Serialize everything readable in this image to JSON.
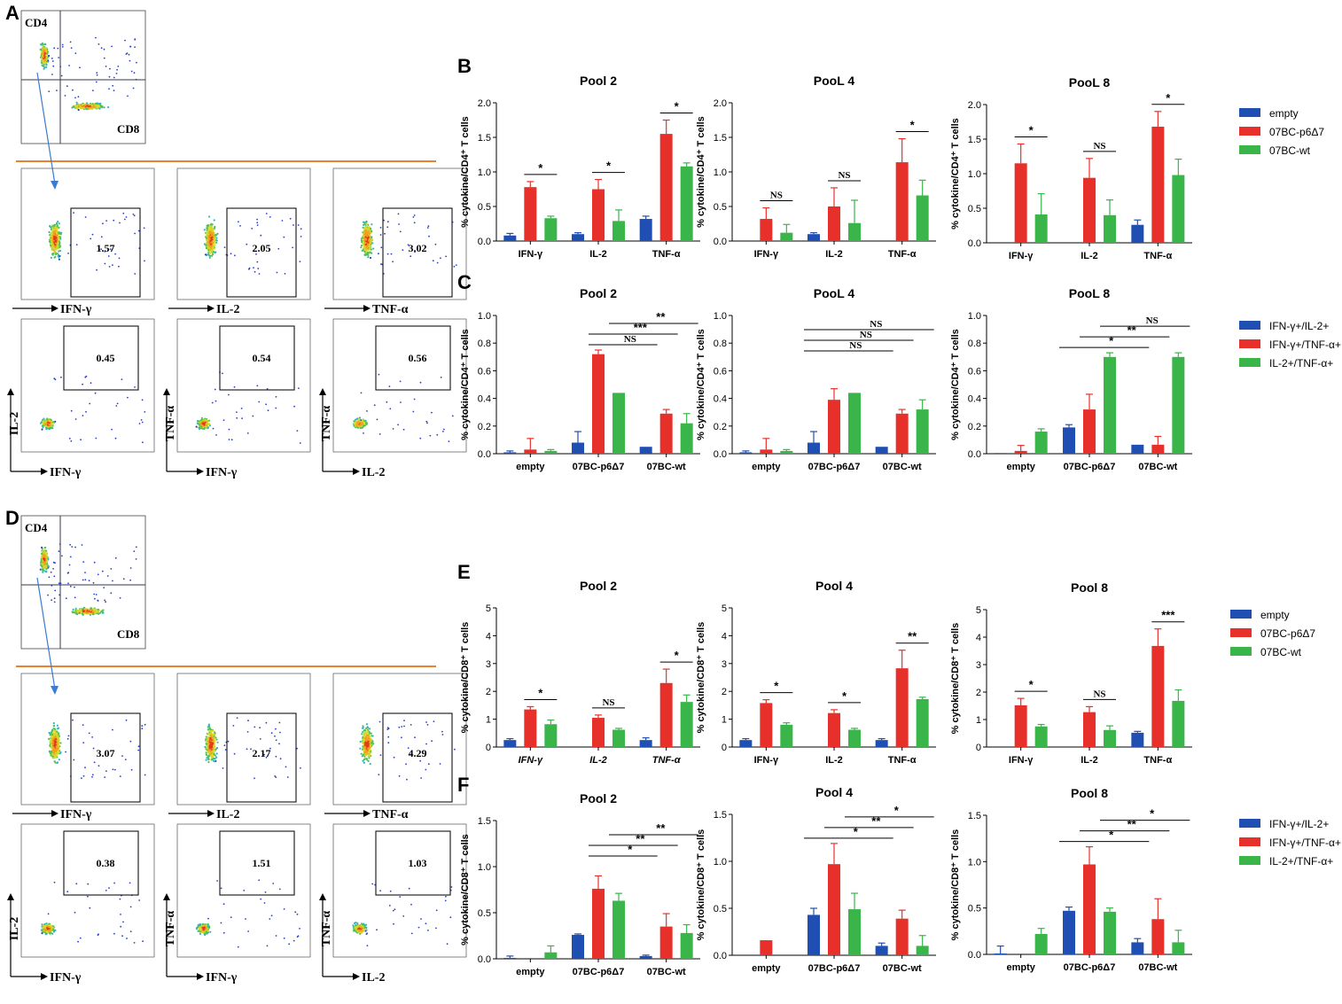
{
  "colors": {
    "blue": "#1f4fb3",
    "red": "#e8302b",
    "green": "#39b54a",
    "orange": "#e8822e",
    "quadline": "#2f3a4a",
    "arrow": "#3b7bd1"
  },
  "panels": {
    "A": {
      "label": "A",
      "quad": {
        "q1": "CD4",
        "q2": "CD8"
      },
      "row1": [
        {
          "marker": "IFN-γ",
          "value": "1.57"
        },
        {
          "marker": "IL-2",
          "value": "2.05"
        },
        {
          "marker": "TNF-α",
          "value": "3.02"
        }
      ],
      "row2": [
        {
          "x": "IFN-γ",
          "y": "IL-2",
          "value": "0.45"
        },
        {
          "x": "IFN-γ",
          "y": "TNF-α",
          "value": "0.54"
        },
        {
          "x": "IL-2",
          "y": "TNF-α",
          "value": "0.56"
        }
      ]
    },
    "D": {
      "label": "D",
      "quad": {
        "q1": "CD4",
        "q2": "CD8"
      },
      "row1": [
        {
          "marker": "IFN-γ",
          "value": "3.07"
        },
        {
          "marker": "IL-2",
          "value": "2.17"
        },
        {
          "marker": "TNF-α",
          "value": "4.29"
        }
      ],
      "row2": [
        {
          "x": "IFN-γ",
          "y": "IL-2",
          "value": "0.38"
        },
        {
          "x": "IFN-γ",
          "y": "TNF-α",
          "value": "1.51"
        },
        {
          "x": "IL-2",
          "y": "TNF-α",
          "value": "1.03"
        }
      ]
    }
  },
  "legends": {
    "cytokine": [
      "empty",
      "07BC-p6Δ7",
      "07BC-wt"
    ],
    "combo": [
      "IFN-γ+/IL-2+",
      "IFN-γ+/TNF-α+",
      "IL-2+/TNF-α+"
    ]
  },
  "chart_data": [
    {
      "panel": "B",
      "type": "bar",
      "title": "Pool 2",
      "ylabel": "% cytokine/CD4⁺ T cells",
      "ylim": [
        0,
        2.0
      ],
      "yticks": [
        "0.0",
        "0.5",
        "1.0",
        "1.5",
        "2.0"
      ],
      "categories": [
        "IFN-γ",
        "IL-2",
        "TNF-α"
      ],
      "series": [
        {
          "name": "empty",
          "values": [
            0.08,
            0.1,
            0.32
          ],
          "err": [
            0.03,
            0.02,
            0.04
          ]
        },
        {
          "name": "07BC-p6Δ7",
          "values": [
            0.78,
            0.75,
            1.55
          ],
          "err": [
            0.08,
            0.14,
            0.2
          ]
        },
        {
          "name": "07BC-wt",
          "values": [
            0.33,
            0.29,
            1.08
          ],
          "err": [
            0.03,
            0.16,
            0.05
          ]
        }
      ],
      "sig": [
        {
          "label": "*",
          "cat": 0
        },
        {
          "label": "*",
          "cat": 1
        },
        {
          "label": "*",
          "cat": 2
        }
      ]
    },
    {
      "panel": "B",
      "type": "bar",
      "title": "PooL 4",
      "ylabel": "% cytokine/CD4⁺ T cells",
      "ylim": [
        0,
        2.0
      ],
      "yticks": [
        "0.0",
        "0.5",
        "1.0",
        "1.5",
        "2.0"
      ],
      "categories": [
        "IFN-γ",
        "IL-2",
        "TNF-α"
      ],
      "series": [
        {
          "name": "empty",
          "values": [
            0,
            0.1,
            0
          ],
          "err": [
            0,
            0.02,
            0
          ]
        },
        {
          "name": "07BC-p6Δ7",
          "values": [
            0.32,
            0.5,
            1.14
          ],
          "err": [
            0.16,
            0.27,
            0.34
          ]
        },
        {
          "name": "07BC-wt",
          "values": [
            0.12,
            0.26,
            0.66
          ],
          "err": [
            0.12,
            0.33,
            0.22
          ]
        }
      ],
      "sig": [
        {
          "label": "NS",
          "cat": 0
        },
        {
          "label": "NS",
          "cat": 1
        },
        {
          "label": "*",
          "cat": 2
        }
      ]
    },
    {
      "panel": "B",
      "type": "bar",
      "title": "PooL 8",
      "ylabel": "% cytokine/CD4⁺ T cells",
      "ylim": [
        0,
        2.0
      ],
      "yticks": [
        "0.0",
        "0.5",
        "1.0",
        "1.5",
        "2.0"
      ],
      "categories": [
        "IFN-γ",
        "IL-2",
        "TNF-α"
      ],
      "series": [
        {
          "name": "empty",
          "values": [
            0,
            0,
            0.26
          ],
          "err": [
            0,
            0,
            0.07
          ]
        },
        {
          "name": "07BC-p6Δ7",
          "values": [
            1.15,
            0.94,
            1.68
          ],
          "err": [
            0.28,
            0.28,
            0.22
          ]
        },
        {
          "name": "07BC-wt",
          "values": [
            0.41,
            0.4,
            0.98
          ],
          "err": [
            0.3,
            0.22,
            0.23
          ]
        }
      ],
      "sig": [
        {
          "label": "*",
          "cat": 0
        },
        {
          "label": "NS",
          "cat": 1
        },
        {
          "label": "*",
          "cat": 2
        }
      ]
    },
    {
      "panel": "C",
      "type": "bar",
      "title": "Pool 2",
      "ylabel": "% cytokine/CD4⁺ T cells",
      "ylim": [
        0,
        1.0
      ],
      "yticks": [
        "0.0",
        "0.2",
        "0.4",
        "0.6",
        "0.8",
        "1.0"
      ],
      "categories": [
        "empty",
        "07BC-p6Δ7",
        "07BC-wt"
      ],
      "series": [
        {
          "name": "IFN-γ+/IL-2+",
          "values": [
            0.01,
            0.08,
            0.05
          ],
          "err": [
            0.01,
            0.08,
            0
          ]
        },
        {
          "name": "IFN-γ+/TNF-α+",
          "values": [
            0.03,
            0.72,
            0.29
          ],
          "err": [
            0.08,
            0.03,
            0.03
          ]
        },
        {
          "name": "IL-2+/TNF-α+",
          "values": [
            0.02,
            0.44,
            0.22
          ],
          "err": [
            0.01,
            0,
            0.07
          ]
        }
      ],
      "brackets": [
        {
          "label": "NS",
          "from": "1:1",
          "to": "2:0"
        },
        {
          "label": "***",
          "from": "1:1",
          "to": "2:1"
        },
        {
          "label": "**",
          "from": "1:2",
          "to": "2:2"
        }
      ]
    },
    {
      "panel": "C",
      "type": "bar",
      "title": "PooL 4",
      "ylabel": "% cytokine/CD4⁺ T cells",
      "ylim": [
        0,
        1.0
      ],
      "yticks": [
        "0.0",
        "0.2",
        "0.4",
        "0.6",
        "0.8",
        "1.0"
      ],
      "categories": [
        "empty",
        "07BC-p6Δ7",
        "07BC-wt"
      ],
      "series": [
        {
          "name": "IFN-γ+/IL-2+",
          "values": [
            0.01,
            0.08,
            0.05
          ],
          "err": [
            0.01,
            0.08,
            0
          ]
        },
        {
          "name": "IFN-γ+/TNF-α+",
          "values": [
            0.03,
            0.39,
            0.29
          ],
          "err": [
            0.08,
            0.08,
            0.03
          ]
        },
        {
          "name": "IL-2+/TNF-α+",
          "values": [
            0.02,
            0.44,
            0.32
          ],
          "err": [
            0.01,
            0,
            0.07
          ]
        }
      ],
      "brackets": [
        {
          "label": "NS",
          "from": "1:0",
          "to": "2:0"
        },
        {
          "label": "NS",
          "from": "1:0",
          "to": "2:1"
        },
        {
          "label": "NS",
          "from": "1:0",
          "to": "2:2"
        }
      ]
    },
    {
      "panel": "C",
      "type": "bar",
      "title": "PooL 8",
      "ylabel": "% cytokine/CD4⁺ T cells",
      "ylim": [
        0,
        1.0
      ],
      "yticks": [
        "0.0",
        "0.2",
        "0.4",
        "0.6",
        "0.8",
        "1.0"
      ],
      "categories": [
        "empty",
        "07BC-p6Δ7",
        "07BC-wt"
      ],
      "series": [
        {
          "name": "IFN-γ+/IL-2+",
          "values": [
            0.005,
            0.19,
            0.065
          ],
          "err": [
            0,
            0.02,
            0
          ]
        },
        {
          "name": "IFN-γ+/TNF-α+",
          "values": [
            0.02,
            0.32,
            0.065
          ],
          "err": [
            0.04,
            0.11,
            0.06
          ]
        },
        {
          "name": "IL-2+/TNF-α+",
          "values": [
            0.16,
            0.7,
            0.7
          ],
          "err": [
            0.02,
            0.03,
            0.03
          ]
        }
      ],
      "brackets": [
        {
          "label": "*",
          "from": "1:0",
          "to": "2:0"
        },
        {
          "label": "**",
          "from": "1:1",
          "to": "2:1"
        },
        {
          "label": "NS",
          "from": "1:2",
          "to": "2:2"
        }
      ]
    },
    {
      "panel": "E",
      "type": "bar",
      "title": "Pool 2",
      "ylabel": "% cytokine/CD8⁺ T cells",
      "ylim": [
        0,
        5
      ],
      "yticks": [
        "0",
        "1",
        "2",
        "3",
        "4",
        "5"
      ],
      "categories": [
        "IFN-γ",
        "IL-2",
        "TNF-α"
      ],
      "series": [
        {
          "name": "empty",
          "values": [
            0.25,
            0,
            0.25
          ],
          "err": [
            0.05,
            0,
            0.08
          ]
        },
        {
          "name": "07BC-p6Δ7",
          "values": [
            1.35,
            1.05,
            2.3
          ],
          "err": [
            0.1,
            0.1,
            0.5
          ]
        },
        {
          "name": "07BC-wt",
          "values": [
            0.82,
            0.62,
            1.62
          ],
          "err": [
            0.15,
            0.05,
            0.25
          ]
        }
      ],
      "sig": [
        {
          "label": "*",
          "cat": 0
        },
        {
          "label": "NS",
          "cat": 1
        },
        {
          "label": "*",
          "cat": 2
        }
      ]
    },
    {
      "panel": "E",
      "type": "bar",
      "title": "Pool 4",
      "ylabel": "% cytokine/CD8⁺ T cells",
      "ylim": [
        0,
        5
      ],
      "yticks": [
        "0",
        "1",
        "2",
        "3",
        "4",
        "5"
      ],
      "categories": [
        "IFN-γ",
        "IL-2",
        "TNF-α"
      ],
      "series": [
        {
          "name": "empty",
          "values": [
            0.25,
            0,
            0.25
          ],
          "err": [
            0.05,
            0,
            0.05
          ]
        },
        {
          "name": "07BC-p6Δ7",
          "values": [
            1.58,
            1.22,
            2.83
          ],
          "err": [
            0.12,
            0.12,
            0.65
          ]
        },
        {
          "name": "07BC-wt",
          "values": [
            0.8,
            0.62,
            1.72
          ],
          "err": [
            0.07,
            0.05,
            0.07
          ]
        }
      ],
      "sig": [
        {
          "label": "*",
          "cat": 0
        },
        {
          "label": "*",
          "cat": 1
        },
        {
          "label": "**",
          "cat": 2
        }
      ]
    },
    {
      "panel": "E",
      "type": "bar",
      "title": "Pool 8",
      "ylabel": "% cytokine/CD8⁺ T cells",
      "ylim": [
        0,
        5
      ],
      "yticks": [
        "0",
        "1",
        "2",
        "3",
        "4",
        "5"
      ],
      "categories": [
        "IFN-γ",
        "IL-2",
        "TNF-α"
      ],
      "series": [
        {
          "name": "empty",
          "values": [
            0,
            0,
            0.52
          ],
          "err": [
            0,
            0,
            0.05
          ]
        },
        {
          "name": "07BC-p6Δ7",
          "values": [
            1.52,
            1.27,
            3.68
          ],
          "err": [
            0.25,
            0.2,
            0.62
          ]
        },
        {
          "name": "07BC-wt",
          "values": [
            0.75,
            0.62,
            1.68
          ],
          "err": [
            0.07,
            0.15,
            0.4
          ]
        }
      ],
      "sig": [
        {
          "label": "*",
          "cat": 0
        },
        {
          "label": "NS",
          "cat": 1
        },
        {
          "label": "***",
          "cat": 2
        }
      ]
    },
    {
      "panel": "F",
      "type": "bar",
      "title": "Pool 2",
      "ylabel": "% cytokine/CD8⁺ T cells",
      "ylim": [
        0,
        1.5
      ],
      "yticks": [
        "0.0",
        "0.5",
        "1.0",
        "1.5"
      ],
      "categories": [
        "empty",
        "07BC-p6Δ7",
        "07BC-wt"
      ],
      "series": [
        {
          "name": "IFN-γ+/IL-2+",
          "values": [
            0.01,
            0.26,
            0.03
          ],
          "err": [
            0.02,
            0.01,
            0.01
          ]
        },
        {
          "name": "IFN-γ+/TNF-α+",
          "values": [
            0,
            0.76,
            0.35
          ],
          "err": [
            0,
            0.14,
            0.14
          ]
        },
        {
          "name": "IL-2+/TNF-α+",
          "values": [
            0.07,
            0.63,
            0.28
          ],
          "err": [
            0.07,
            0.08,
            0.09
          ]
        }
      ],
      "brackets": [
        {
          "label": "*",
          "from": "1:1",
          "to": "2:0"
        },
        {
          "label": "**",
          "from": "1:1",
          "to": "2:1"
        },
        {
          "label": "**",
          "from": "1:2",
          "to": "2:2"
        }
      ]
    },
    {
      "panel": "F",
      "type": "bar",
      "title": "Pool 4",
      "ylabel": "% cytokine/CD8⁺ T cells",
      "ylim": [
        0,
        1.5
      ],
      "yticks": [
        "0.0",
        "0.5",
        "1.0",
        "1.5"
      ],
      "categories": [
        "empty",
        "07BC-p6Δ7",
        "07BC-wt"
      ],
      "series": [
        {
          "name": "IFN-γ+/IL-2+",
          "values": [
            0,
            0.43,
            0.1
          ],
          "err": [
            0,
            0.07,
            0.03
          ]
        },
        {
          "name": "IFN-γ+/TNF-α+",
          "values": [
            0.16,
            0.97,
            0.39
          ],
          "err": [
            0,
            0.22,
            0.09
          ]
        },
        {
          "name": "IL-2+/TNF-α+",
          "values": [
            0,
            0.49,
            0.1
          ],
          "err": [
            0,
            0.17,
            0.11
          ]
        }
      ],
      "brackets": [
        {
          "label": "*",
          "from": "1:0",
          "to": "2:0"
        },
        {
          "label": "**",
          "from": "1:1",
          "to": "2:1"
        },
        {
          "label": "*",
          "from": "1:2",
          "to": "2:2"
        }
      ]
    },
    {
      "panel": "F",
      "type": "bar",
      "title": "Pool 8",
      "ylabel": "% cytokine/CD8⁺ T cells",
      "ylim": [
        0,
        1.5
      ],
      "yticks": [
        "0.0",
        "0.5",
        "1.0",
        "1.5"
      ],
      "categories": [
        "empty",
        "07BC-p6Δ7",
        "07BC-wt"
      ],
      "series": [
        {
          "name": "IFN-γ+/IL-2+",
          "values": [
            0.01,
            0.47,
            0.13
          ],
          "err": [
            0.08,
            0.04,
            0.04
          ]
        },
        {
          "name": "IFN-γ+/TNF-α+",
          "values": [
            0,
            0.97,
            0.38
          ],
          "err": [
            0,
            0.19,
            0.22
          ]
        },
        {
          "name": "IL-2+/TNF-α+",
          "values": [
            0.22,
            0.46,
            0.13
          ],
          "err": [
            0.06,
            0.04,
            0.13
          ]
        }
      ],
      "brackets": [
        {
          "label": "*",
          "from": "1:0",
          "to": "2:0"
        },
        {
          "label": "**",
          "from": "1:1",
          "to": "2:1"
        },
        {
          "label": "*",
          "from": "1:2",
          "to": "2:2"
        }
      ]
    }
  ]
}
